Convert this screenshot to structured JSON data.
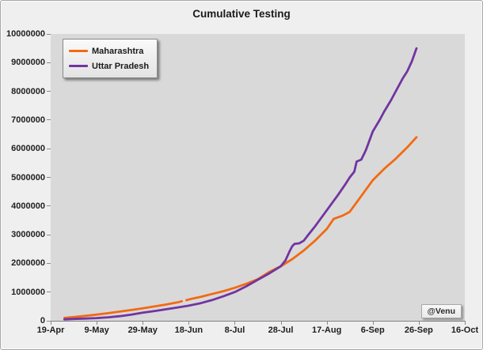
{
  "chart_data": {
    "type": "line",
    "title": "Cumulative Testing",
    "xlabel": "",
    "ylabel": "",
    "grid": false,
    "legend_position": "top-left-inside",
    "watermark": "@Venu",
    "x_range_days": [
      0,
      180
    ],
    "x_tick_labels": [
      "19-Apr",
      "9-May",
      "29-May",
      "18-Jun",
      "8-Jul",
      "28-Jul",
      "17-Aug",
      "6-Sep",
      "26-Sep",
      "16-Oct"
    ],
    "ylim": [
      0,
      10000000
    ],
    "y_tick_step": 1000000,
    "y_tick_labels": [
      "0",
      "1000000",
      "2000000",
      "3000000",
      "4000000",
      "5000000",
      "6000000",
      "7000000",
      "8000000",
      "9000000",
      "10000000"
    ],
    "plot_background": "#D9D9D9",
    "frame_background": "#F0EFEF",
    "series": [
      {
        "name": "Maharashtra",
        "color": "#F26A13",
        "segments": [
          [
            [
              6,
              100000
            ],
            [
              10,
              130000
            ],
            [
              15,
              170000
            ],
            [
              20,
              215000
            ],
            [
              25,
              265000
            ],
            [
              30,
              320000
            ],
            [
              35,
              375000
            ],
            [
              40,
              435000
            ],
            [
              45,
              500000
            ],
            [
              50,
              565000
            ],
            [
              55,
              640000
            ],
            [
              57,
              680000
            ]
          ],
          [
            [
              59,
              720000
            ],
            [
              62,
              780000
            ],
            [
              65,
              830000
            ],
            [
              70,
              930000
            ],
            [
              75,
              1030000
            ],
            [
              80,
              1150000
            ],
            [
              85,
              1290000
            ],
            [
              90,
              1450000
            ],
            [
              95,
              1700000
            ],
            [
              100,
              1900000
            ],
            [
              105,
              2150000
            ],
            [
              110,
              2450000
            ],
            [
              115,
              2800000
            ],
            [
              120,
              3200000
            ],
            [
              123,
              3550000
            ],
            [
              127,
              3670000
            ],
            [
              130,
              3800000
            ],
            [
              135,
              4350000
            ],
            [
              140,
              4900000
            ],
            [
              145,
              5300000
            ],
            [
              150,
              5650000
            ],
            [
              155,
              6050000
            ],
            [
              159,
              6400000
            ]
          ]
        ]
      },
      {
        "name": "Uttar Pradesh",
        "color": "#7134A1",
        "segments": [
          [
            [
              6,
              50000
            ],
            [
              10,
              62000
            ],
            [
              15,
              78000
            ],
            [
              20,
              95000
            ],
            [
              25,
              120000
            ],
            [
              30,
              160000
            ],
            [
              35,
              215000
            ],
            [
              40,
              280000
            ],
            [
              45,
              340000
            ],
            [
              50,
              400000
            ],
            [
              55,
              460000
            ],
            [
              60,
              525000
            ],
            [
              65,
              610000
            ],
            [
              70,
              720000
            ],
            [
              75,
              850000
            ],
            [
              80,
              1000000
            ],
            [
              85,
              1200000
            ],
            [
              90,
              1430000
            ],
            [
              95,
              1650000
            ],
            [
              100,
              1900000
            ],
            [
              102,
              2100000
            ],
            [
              104,
              2450000
            ],
            [
              105,
              2600000
            ],
            [
              106,
              2680000
            ],
            [
              108,
              2700000
            ],
            [
              110,
              2790000
            ],
            [
              112,
              3000000
            ],
            [
              115,
              3300000
            ],
            [
              120,
              3850000
            ],
            [
              125,
              4400000
            ],
            [
              128,
              4750000
            ],
            [
              130,
              5000000
            ],
            [
              132,
              5200000
            ],
            [
              133,
              5550000
            ],
            [
              135,
              5620000
            ],
            [
              137,
              5950000
            ],
            [
              140,
              6600000
            ],
            [
              143,
              7000000
            ],
            [
              145,
              7300000
            ],
            [
              148,
              7700000
            ],
            [
              150,
              8000000
            ],
            [
              153,
              8450000
            ],
            [
              155,
              8700000
            ],
            [
              157,
              9050000
            ],
            [
              159,
              9500000
            ]
          ]
        ]
      }
    ]
  }
}
